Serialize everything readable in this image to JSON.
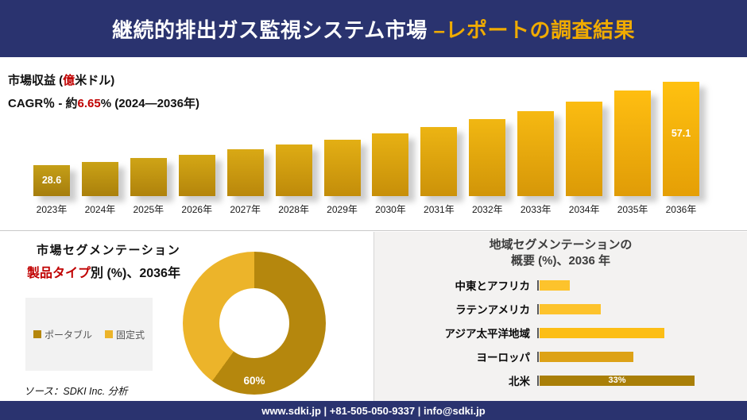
{
  "colors": {
    "navy": "#2a336f",
    "accent_gold": "#f0ab00",
    "highlight_red": "#c00000",
    "panel_gray": "#f3f2f1",
    "legend_box_gray": "#f2f2f2",
    "axis_gray": "#595959",
    "revenue_bar_start": "#b38d11",
    "revenue_bar_end": "#f3af0a"
  },
  "header": {
    "title_main": "継続的排出ガス監視システム市場 ",
    "title_accent": "–レポートの調査結果"
  },
  "revenue": {
    "metric_prefix": "市場収益 (",
    "metric_red": "億",
    "metric_suffix": "米ドル)",
    "cagr_prefix": "CAGR％ - 約",
    "cagr_red": "6.65",
    "cagr_suffix": "% (2024―2036年)"
  },
  "segmentation": {
    "title": "市場セグメンテーション",
    "subtitle_red": "製品タイプ",
    "subtitle_rest": "別 (%)、2036年",
    "donut_label": "60%",
    "source": "ソース：SDKI Inc. 分析"
  },
  "regional": {
    "title_line1": "地域セグメンテーションの",
    "title_line2": "概要 (%)、2036 年"
  },
  "footer": {
    "contact": "www.sdki.jp | +81-505-050-9337 | info@sdki.jp"
  },
  "chart_data": [
    {
      "type": "bar",
      "title": "市場収益 (億米ドル)",
      "subtitle": "CAGR％ - 約6.65% (2024―2036年)",
      "categories": [
        "2023年",
        "2024年",
        "2025年",
        "2026年",
        "2027年",
        "2028年",
        "2029年",
        "2030年",
        "2031年",
        "2032年",
        "2033年",
        "2034年",
        "2035年",
        "2036年"
      ],
      "values": [
        28.6,
        29.7,
        31.0,
        32.2,
        34.0,
        35.6,
        37.4,
        39.4,
        41.8,
        44.3,
        47.1,
        50.4,
        54.1,
        57.1
      ],
      "labeled_values": {
        "2023年": "28.6",
        "2036年": "57.1"
      },
      "ylim": [
        18,
        58
      ],
      "grid": false,
      "legend_position": "none",
      "note": "Only 2023 (28.6) and 2036 (57.1) carry data labels; intermediate values estimated from bar heights"
    },
    {
      "type": "pie",
      "donut": true,
      "title": "市場セグメンテーション 製品タイプ別 (%)、2036年",
      "series": [
        {
          "name": "ポータブル",
          "value": 60
        },
        {
          "name": "固定式",
          "value": 40
        }
      ],
      "colors": [
        "#b5870d",
        "#ecb42a"
      ],
      "labels_shown": [
        "60%"
      ],
      "legend_position": "left"
    },
    {
      "type": "bar",
      "orientation": "horizontal",
      "title": "地域セグメンテーションの概要 (%)、2036 年",
      "categories": [
        "中東とアフリカ",
        "ラテンアメリカ",
        "アジア太平洋地域",
        "ヨーロッパ",
        "北米"
      ],
      "values": [
        6.5,
        13,
        26.5,
        20,
        33
      ],
      "labeled_values": {
        "北米": "33%"
      },
      "colors": [
        "#fdc32c",
        "#fdc32c",
        "#fcbe16",
        "#dda217",
        "#a97f08"
      ],
      "xlim": [
        0,
        39
      ],
      "grid": false,
      "note": "Only 北米 carries a data label (33%); other values estimated from bar lengths"
    }
  ]
}
